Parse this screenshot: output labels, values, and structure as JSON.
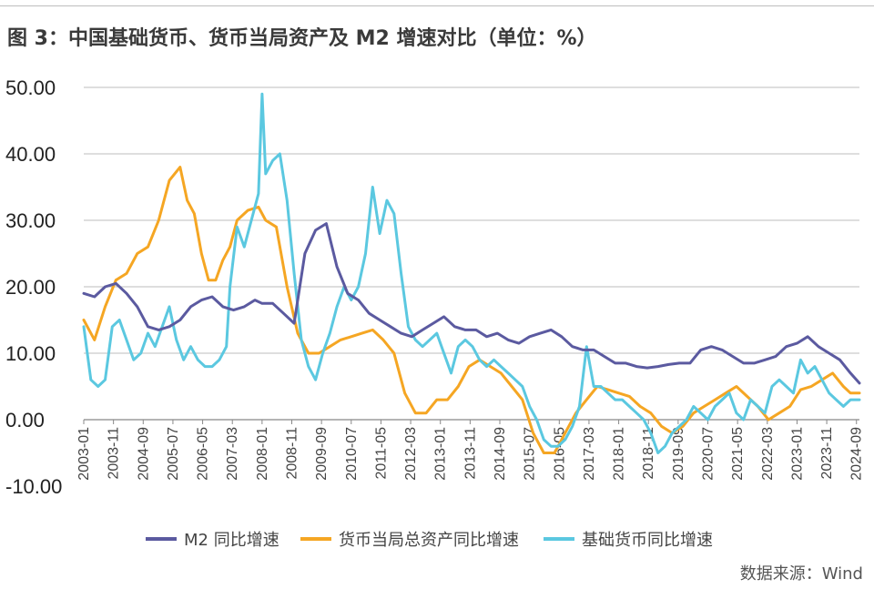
{
  "title": "图 3：中国基础货币、货币当局资产及 M2 增速对比（单位：%）",
  "source": "数据来源：Wind",
  "chart_data": {
    "type": "line",
    "title": "图 3：中国基础货币、货币当局资产及 M2 增速对比（单位：%）",
    "xlabel": "",
    "ylabel": "",
    "ylim": [
      -10,
      50
    ],
    "yticks": [
      "50.00",
      "40.00",
      "30.00",
      "20.00",
      "10.00",
      "0.00",
      "-10.00"
    ],
    "ytick_values": [
      50,
      40,
      30,
      20,
      10,
      0,
      -10
    ],
    "xticks": [
      "2003-01",
      "2003-11",
      "2004-09",
      "2005-07",
      "2006-05",
      "2007-03",
      "2008-01",
      "2008-11",
      "2009-09",
      "2010-07",
      "2011-05",
      "2012-03",
      "2013-01",
      "2013-11",
      "2014-09",
      "2015-07",
      "2016-05",
      "2017-03",
      "2018-01",
      "2018-11",
      "2019-09",
      "2020-07",
      "2021-05",
      "2022-03",
      "2023-01",
      "2023-11",
      "2024-09"
    ],
    "grid": true,
    "legend_position": "bottom",
    "series": [
      {
        "name": "M2 同比增速",
        "color": "#5b5aa0",
        "x": [
          2003.0,
          2003.3,
          2003.6,
          2003.9,
          2004.2,
          2004.5,
          2004.8,
          2005.1,
          2005.4,
          2005.7,
          2006.0,
          2006.3,
          2006.6,
          2006.9,
          2007.2,
          2007.5,
          2007.8,
          2008.0,
          2008.3,
          2008.6,
          2008.9,
          2009.2,
          2009.5,
          2009.8,
          2010.1,
          2010.4,
          2010.7,
          2011.0,
          2011.3,
          2011.6,
          2011.9,
          2012.2,
          2012.5,
          2012.8,
          2013.1,
          2013.4,
          2013.7,
          2014.0,
          2014.3,
          2014.6,
          2014.9,
          2015.2,
          2015.5,
          2015.8,
          2016.1,
          2016.4,
          2016.7,
          2017.0,
          2017.3,
          2017.6,
          2017.9,
          2018.2,
          2018.5,
          2018.8,
          2019.1,
          2019.4,
          2019.7,
          2020.0,
          2020.3,
          2020.6,
          2020.9,
          2021.2,
          2021.5,
          2021.8,
          2022.1,
          2022.4,
          2022.7,
          2023.0,
          2023.3,
          2023.6,
          2023.9,
          2024.2,
          2024.5,
          2024.75
        ],
        "values": [
          19,
          18.5,
          20,
          20.5,
          19,
          17,
          14,
          13.5,
          14,
          15,
          17,
          18,
          18.5,
          17,
          16.5,
          17,
          18,
          17.5,
          17.5,
          16,
          14.5,
          25,
          28.5,
          29.5,
          23,
          19,
          18,
          16,
          15,
          14,
          13,
          12.5,
          13.5,
          14.5,
          15.5,
          14,
          13.5,
          13.5,
          12.5,
          13,
          12,
          11.5,
          12.5,
          13,
          13.5,
          12.5,
          11,
          10.5,
          10.5,
          9.5,
          8.5,
          8.5,
          8,
          7.8,
          8,
          8.3,
          8.5,
          8.5,
          10.5,
          11,
          10.5,
          9.5,
          8.5,
          8.5,
          9,
          9.5,
          11,
          11.5,
          12.5,
          11,
          10,
          9,
          7,
          5.5
        ]
      },
      {
        "name": "货币当局总资产同比增速",
        "color": "#f5a623",
        "x": [
          2003.0,
          2003.3,
          2003.6,
          2003.9,
          2004.2,
          2004.5,
          2004.8,
          2005.1,
          2005.4,
          2005.7,
          2005.9,
          2006.1,
          2006.3,
          2006.5,
          2006.7,
          2006.9,
          2007.1,
          2007.3,
          2007.6,
          2007.9,
          2008.1,
          2008.4,
          2008.7,
          2009.0,
          2009.3,
          2009.6,
          2009.9,
          2010.2,
          2010.5,
          2010.8,
          2011.1,
          2011.4,
          2011.7,
          2012.0,
          2012.3,
          2012.6,
          2012.9,
          2013.2,
          2013.5,
          2013.8,
          2014.1,
          2014.4,
          2014.7,
          2015.0,
          2015.3,
          2015.6,
          2015.9,
          2016.2,
          2016.5,
          2016.8,
          2017.1,
          2017.4,
          2017.7,
          2018.0,
          2018.3,
          2018.6,
          2018.9,
          2019.2,
          2019.5,
          2019.8,
          2020.1,
          2020.4,
          2020.7,
          2021.0,
          2021.3,
          2021.6,
          2021.9,
          2022.2,
          2022.5,
          2022.8,
          2023.1,
          2023.4,
          2023.7,
          2024.0,
          2024.3,
          2024.5,
          2024.75
        ],
        "values": [
          15,
          12,
          17,
          21,
          22,
          25,
          26,
          30,
          36,
          38,
          33,
          31,
          25,
          21,
          21,
          24,
          26,
          30,
          31.5,
          32,
          30,
          29,
          20,
          13,
          10,
          10,
          11,
          12,
          12.5,
          13,
          13.5,
          12,
          10,
          4,
          1,
          1,
          3,
          3,
          5,
          8,
          9,
          8,
          7,
          5,
          3,
          -2,
          -5,
          -5,
          -2,
          1,
          3,
          5,
          4.5,
          4,
          3.5,
          2,
          1,
          -1,
          -2,
          -1,
          1,
          2,
          3,
          4,
          5,
          3.5,
          2,
          0,
          1,
          2,
          4.5,
          5,
          6,
          7,
          5,
          4,
          4
        ]
      },
      {
        "name": "基础货币同比增速",
        "color": "#5bc8e0",
        "x": [
          2003.0,
          2003.2,
          2003.4,
          2003.6,
          2003.8,
          2004.0,
          2004.2,
          2004.4,
          2004.6,
          2004.8,
          2005.0,
          2005.2,
          2005.4,
          2005.6,
          2005.8,
          2006.0,
          2006.2,
          2006.4,
          2006.6,
          2006.8,
          2007.0,
          2007.1,
          2007.3,
          2007.5,
          2007.7,
          2007.9,
          2008.0,
          2008.1,
          2008.3,
          2008.5,
          2008.7,
          2008.9,
          2009.1,
          2009.3,
          2009.5,
          2009.7,
          2009.9,
          2010.1,
          2010.3,
          2010.5,
          2010.7,
          2010.9,
          2011.1,
          2011.3,
          2011.5,
          2011.7,
          2011.9,
          2012.1,
          2012.3,
          2012.5,
          2012.7,
          2012.9,
          2013.1,
          2013.3,
          2013.5,
          2013.7,
          2013.9,
          2014.1,
          2014.3,
          2014.5,
          2014.7,
          2014.9,
          2015.1,
          2015.3,
          2015.5,
          2015.7,
          2015.9,
          2016.1,
          2016.3,
          2016.5,
          2016.7,
          2016.9,
          2017.1,
          2017.3,
          2017.5,
          2017.7,
          2017.9,
          2018.1,
          2018.3,
          2018.5,
          2018.7,
          2018.9,
          2019.1,
          2019.3,
          2019.5,
          2019.7,
          2019.9,
          2020.1,
          2020.3,
          2020.5,
          2020.7,
          2020.9,
          2021.1,
          2021.3,
          2021.5,
          2021.7,
          2021.9,
          2022.1,
          2022.3,
          2022.5,
          2022.7,
          2022.9,
          2023.1,
          2023.3,
          2023.5,
          2023.7,
          2023.9,
          2024.1,
          2024.3,
          2024.5,
          2024.75
        ],
        "values": [
          14,
          6,
          5,
          6,
          14,
          15,
          12,
          9,
          10,
          13,
          11,
          14,
          17,
          12,
          9,
          11,
          9,
          8,
          8,
          9,
          11,
          20,
          29,
          26,
          30,
          34,
          49,
          37,
          39,
          40,
          33,
          22,
          12,
          8,
          6,
          10,
          13,
          17,
          20,
          18,
          20,
          25,
          35,
          28,
          33,
          31,
          22,
          14,
          12,
          11,
          12,
          13,
          10,
          7,
          11,
          12,
          11,
          9,
          8,
          9,
          8,
          7,
          6,
          5,
          2,
          0,
          -3,
          -4,
          -4,
          -3,
          -1,
          2,
          11,
          5,
          5,
          4,
          3,
          3,
          2,
          1,
          0,
          -2,
          -5,
          -4,
          -2,
          -1,
          0,
          2,
          1,
          0,
          2,
          3,
          4,
          1,
          0,
          3,
          2,
          1,
          5,
          6,
          5,
          4,
          9,
          7,
          8,
          6,
          4,
          3,
          2,
          3,
          3
        ]
      }
    ]
  }
}
